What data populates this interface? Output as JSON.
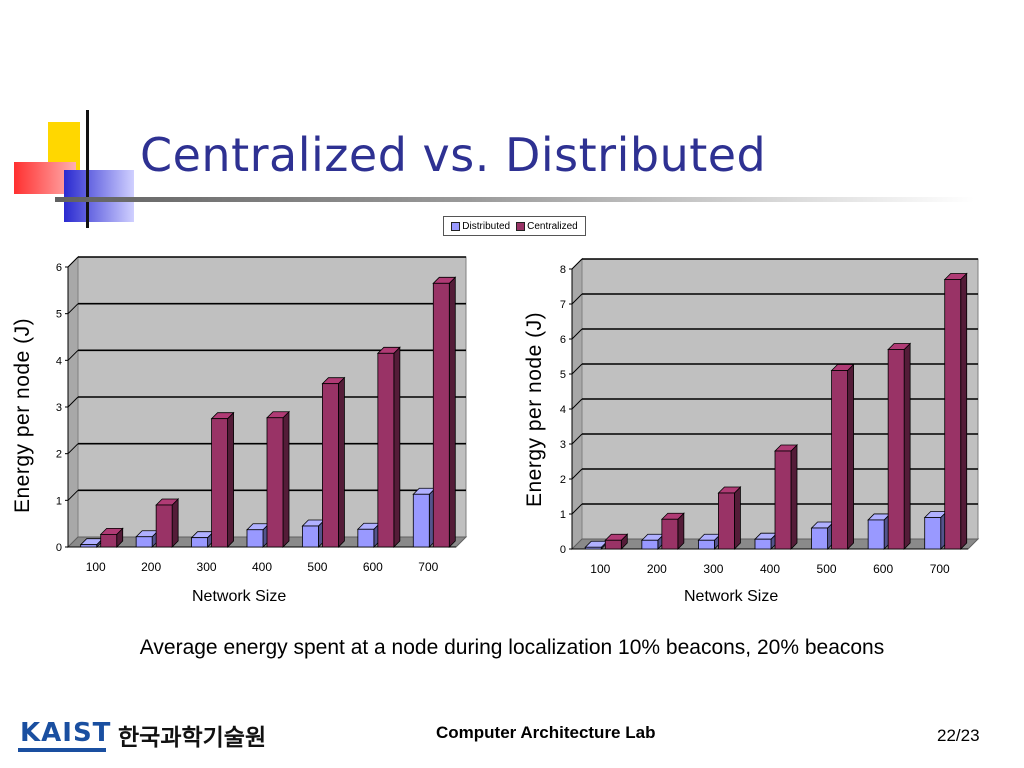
{
  "slide": {
    "title": "Centralized vs. Distributed",
    "caption": "Average energy spent at a node during localization 10% beacons, 20% beacons",
    "footer_lab": "Computer Architecture Lab",
    "page_number": "22/23",
    "logo_text": "KAIST",
    "logo_korean": "한국과학기술원"
  },
  "legend": [
    {
      "label": "Distributed",
      "color": "#9999ff"
    },
    {
      "label": "Centralized",
      "color": "#993366"
    }
  ],
  "chart_data": [
    {
      "type": "bar",
      "title": "",
      "xlabel": "Network Size",
      "ylabel": "Energy per node (J)",
      "categories": [
        "100",
        "200",
        "300",
        "400",
        "500",
        "600",
        "700"
      ],
      "series": [
        {
          "name": "Distributed",
          "color": "#9999ff",
          "values": [
            0.05,
            0.22,
            0.2,
            0.37,
            0.45,
            0.38,
            1.13
          ]
        },
        {
          "name": "Centralized",
          "color": "#993366",
          "values": [
            0.27,
            0.9,
            2.75,
            2.77,
            3.5,
            4.15,
            5.65
          ]
        }
      ],
      "ylim": [
        0,
        6
      ],
      "yticks": [
        "0",
        "1",
        "2",
        "3",
        "4",
        "5",
        "6"
      ],
      "grid": true
    },
    {
      "type": "bar",
      "title": "",
      "xlabel": "Network Size",
      "ylabel": "Energy per node (J)",
      "categories": [
        "100",
        "200",
        "300",
        "400",
        "500",
        "600",
        "700"
      ],
      "series": [
        {
          "name": "Distributed",
          "color": "#9999ff",
          "values": [
            0.05,
            0.25,
            0.25,
            0.28,
            0.6,
            0.83,
            0.9
          ]
        },
        {
          "name": "Centralized",
          "color": "#993366",
          "values": [
            0.25,
            0.85,
            1.6,
            2.8,
            5.1,
            5.7,
            7.7
          ]
        }
      ],
      "ylim": [
        0,
        8
      ],
      "yticks": [
        "0",
        "1",
        "2",
        "3",
        "4",
        "5",
        "6",
        "7",
        "8"
      ],
      "grid": true
    }
  ]
}
